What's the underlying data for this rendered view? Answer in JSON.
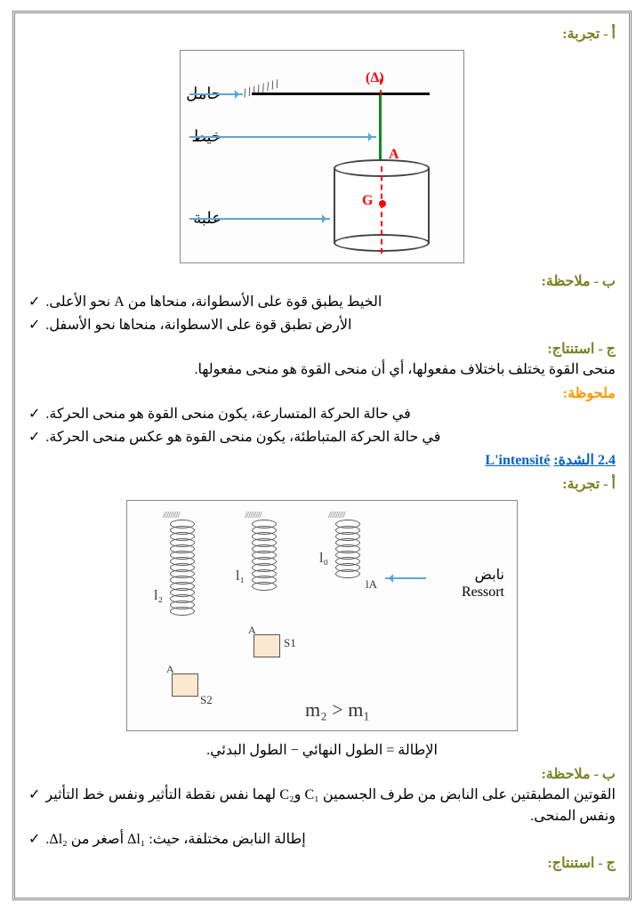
{
  "section1": {
    "experiment_heading": "أ - تجربة:",
    "diagram1": {
      "delta": "(Δ)",
      "support_label": "حامل",
      "thread_label": "خيط",
      "box_label": "علبة",
      "point_A": "A",
      "center_G": "G",
      "hatch_text": "/ / / / / / / /",
      "arrow_color": "#5aa7d4",
      "delta_color": "#ff0000",
      "G_color": "#ff0000",
      "thread_color": "#0c8a1e"
    },
    "note_heading": "ب - ملاحظة:",
    "note_bullets": [
      "الخيط يطبق قوة على الأسطوانة، منحاها من A نحو الأعلى.",
      "الأرض تطبق قوة على الاسطوانة، منحاها نحو الأسفل."
    ],
    "conclusion_heading": "ج - استنتاج:",
    "conclusion_text": "منحى القوة يختلف باختلاف مفعولها، أي أن منحى القوة هو منحى مفعولها.",
    "remark_heading": "ملحوظة:",
    "remark_bullets": [
      "في حالة الحركة المتسارعة، يكون منحى القوة هو منحى الحركة.",
      "في حالة الحركة المتباطئة، يكون منحى القوة هو عكس منحى الحركة."
    ]
  },
  "section2": {
    "title_ar": "2.4 الشدة:",
    "title_fr": "L'intensité",
    "experiment_heading": "أ - تجربة:",
    "diagram2": {
      "hatch_text": "/////////",
      "spring_label_ar": "نابض",
      "spring_label_fr": "Ressort",
      "l0": "l₀",
      "l1": "l₁",
      "l2": "l₂",
      "lA": "lA",
      "A": "A",
      "S1": "S1",
      "S2": "S2",
      "mass_relation": "m₂ > m₁",
      "coil_loops_l0": 9,
      "coil_loops_l1": 11,
      "coil_loops_l2": 15,
      "arrow_color": "#5aa7d4",
      "box_fill": "#fbe8d0"
    },
    "elongation_text": "الإطالة = الطول النهائي − الطول البدئي.",
    "note_heading": "ب - ملاحظة:",
    "note_bullets": [
      "القوتين المطبقتين على النابض من طرف الجسمين C₁ وC₂ لهما نفس نقطة التأثير ونفس خط التأثير ونفس المنحى.",
      "إطالة النابض مختلفة، حيث: Δl₁ أصغر من Δl₂."
    ],
    "conclusion_heading": "ج - استنتاج:"
  },
  "colors": {
    "heading_olive": "#7a8224",
    "remark_orange": "#ff9900",
    "link_blue": "#0563c1",
    "text": "#000000",
    "border_gray": "#808080"
  }
}
